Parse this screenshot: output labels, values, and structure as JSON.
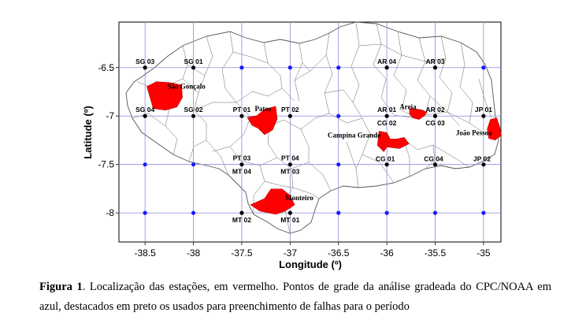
{
  "map": {
    "xlabel": "Longitude (º)",
    "ylabel": "Latitude (º)",
    "x_ticks": [
      -38.5,
      -38,
      -37.5,
      -37,
      -36.5,
      -36,
      -35.5,
      -35
    ],
    "x_tick_labels": [
      "-38.5",
      "-38",
      "-37.5",
      "-37",
      "-36.5",
      "-36",
      "-35.5",
      "-35"
    ],
    "y_ticks": [
      -6.5,
      -7,
      -7.5,
      -8
    ],
    "y_tick_labels": [
      "-6.5",
      "-7",
      "-7.5",
      "-8"
    ],
    "xlim": [
      -38.77,
      -34.82
    ],
    "ylim": [
      -8.3,
      -6.03
    ],
    "grid": true,
    "grid_color": "#8a8ae0",
    "station_color": "#ff0000",
    "grid_point_color": "#1a1aff",
    "used_point_color": "#000000",
    "grid_points": [
      {
        "lon": -38.5,
        "lat": -6.5,
        "used": true
      },
      {
        "lon": -38,
        "lat": -6.5,
        "used": true
      },
      {
        "lon": -37.5,
        "lat": -6.5,
        "used": false
      },
      {
        "lon": -37,
        "lat": -6.5,
        "used": false
      },
      {
        "lon": -36.5,
        "lat": -6.5,
        "used": false
      },
      {
        "lon": -36,
        "lat": -6.5,
        "used": true
      },
      {
        "lon": -35.5,
        "lat": -6.5,
        "used": true
      },
      {
        "lon": -35,
        "lat": -6.5,
        "used": false
      },
      {
        "lon": -38.5,
        "lat": -7,
        "used": true
      },
      {
        "lon": -38,
        "lat": -7,
        "used": true
      },
      {
        "lon": -37.5,
        "lat": -7,
        "used": true
      },
      {
        "lon": -37,
        "lat": -7,
        "used": true
      },
      {
        "lon": -36.5,
        "lat": -7,
        "used": false
      },
      {
        "lon": -36,
        "lat": -7,
        "used": true
      },
      {
        "lon": -35.5,
        "lat": -7,
        "used": true
      },
      {
        "lon": -35,
        "lat": -7,
        "used": true
      },
      {
        "lon": -38.5,
        "lat": -7.5,
        "used": false
      },
      {
        "lon": -38,
        "lat": -7.5,
        "used": false
      },
      {
        "lon": -37.5,
        "lat": -7.5,
        "used": true
      },
      {
        "lon": -37,
        "lat": -7.5,
        "used": true
      },
      {
        "lon": -36.5,
        "lat": -7.5,
        "used": false
      },
      {
        "lon": -36,
        "lat": -7.5,
        "used": true
      },
      {
        "lon": -35.5,
        "lat": -7.5,
        "used": true
      },
      {
        "lon": -35,
        "lat": -7.5,
        "used": true
      },
      {
        "lon": -38.5,
        "lat": -8,
        "used": false
      },
      {
        "lon": -38,
        "lat": -8,
        "used": false
      },
      {
        "lon": -37.5,
        "lat": -8,
        "used": true
      },
      {
        "lon": -37,
        "lat": -8,
        "used": true
      },
      {
        "lon": -36.5,
        "lat": -8,
        "used": false
      },
      {
        "lon": -36,
        "lat": -8,
        "used": false
      },
      {
        "lon": -35.5,
        "lat": -8,
        "used": false
      },
      {
        "lon": -35,
        "lat": -8,
        "used": false
      }
    ],
    "point_labels": [
      {
        "text": "SG 03",
        "lon": -38.5,
        "lat": -6.5,
        "pos": "above"
      },
      {
        "text": "SG 01",
        "lon": -38,
        "lat": -6.5,
        "pos": "above"
      },
      {
        "text": "AR 04",
        "lon": -36,
        "lat": -6.5,
        "pos": "above"
      },
      {
        "text": "AR 03",
        "lon": -35.5,
        "lat": -6.5,
        "pos": "above"
      },
      {
        "text": "SG 04",
        "lon": -38.5,
        "lat": -7,
        "pos": "above"
      },
      {
        "text": "SG 02",
        "lon": -38,
        "lat": -7,
        "pos": "above"
      },
      {
        "text": "PT 01",
        "lon": -37.5,
        "lat": -7,
        "pos": "above"
      },
      {
        "text": "PT 02",
        "lon": -37,
        "lat": -7,
        "pos": "above"
      },
      {
        "text": "AR 01",
        "lon": -36,
        "lat": -7,
        "pos": "above"
      },
      {
        "text": "CG 02",
        "lon": -36,
        "lat": -7,
        "pos": "below"
      },
      {
        "text": "AR 02",
        "lon": -35.5,
        "lat": -7,
        "pos": "above"
      },
      {
        "text": "CG 03",
        "lon": -35.5,
        "lat": -7,
        "pos": "below"
      },
      {
        "text": "JP 01",
        "lon": -35,
        "lat": -7,
        "pos": "above"
      },
      {
        "text": "PT 03",
        "lon": -37.5,
        "lat": -7.5,
        "pos": "above"
      },
      {
        "text": "MT 04",
        "lon": -37.5,
        "lat": -7.5,
        "pos": "below"
      },
      {
        "text": "PT 04",
        "lon": -37,
        "lat": -7.5,
        "pos": "above"
      },
      {
        "text": "MT 03",
        "lon": -37,
        "lat": -7.5,
        "pos": "below"
      },
      {
        "text": "CG 01",
        "lon": -36,
        "lat": -7.5,
        "pos": "rightup"
      },
      {
        "text": "CG 04",
        "lon": -35.5,
        "lat": -7.5,
        "pos": "rightup"
      },
      {
        "text": "JP 02",
        "lon": -35,
        "lat": -7.5,
        "pos": "rightup"
      },
      {
        "text": "MT 02",
        "lon": -37.5,
        "lat": -8,
        "pos": "below"
      },
      {
        "text": "MT 01",
        "lon": -37,
        "lat": -8,
        "pos": "below"
      }
    ],
    "stations": [
      {
        "name": "São Gonçalo",
        "lon": -38.22,
        "lat": -6.76
      },
      {
        "name": "Patos",
        "lon": -37.28,
        "lat": -7.03
      },
      {
        "name": "Areia",
        "lon": -35.7,
        "lat": -6.97
      },
      {
        "name": "Campina Grande",
        "lon": -35.95,
        "lat": -7.27
      },
      {
        "name": "João Pessoa",
        "lon": -34.88,
        "lat": -7.15
      },
      {
        "name": "Monteiro",
        "lon": -37.1,
        "lat": -7.9
      }
    ]
  },
  "caption": {
    "label": "Figura 1",
    "text": ". Localização das estações, em vermelho. Pontos de grade da análise gradeada do CPC/NOAA em azul, destacados em preto os usados para preenchimento de falhas para o período"
  }
}
